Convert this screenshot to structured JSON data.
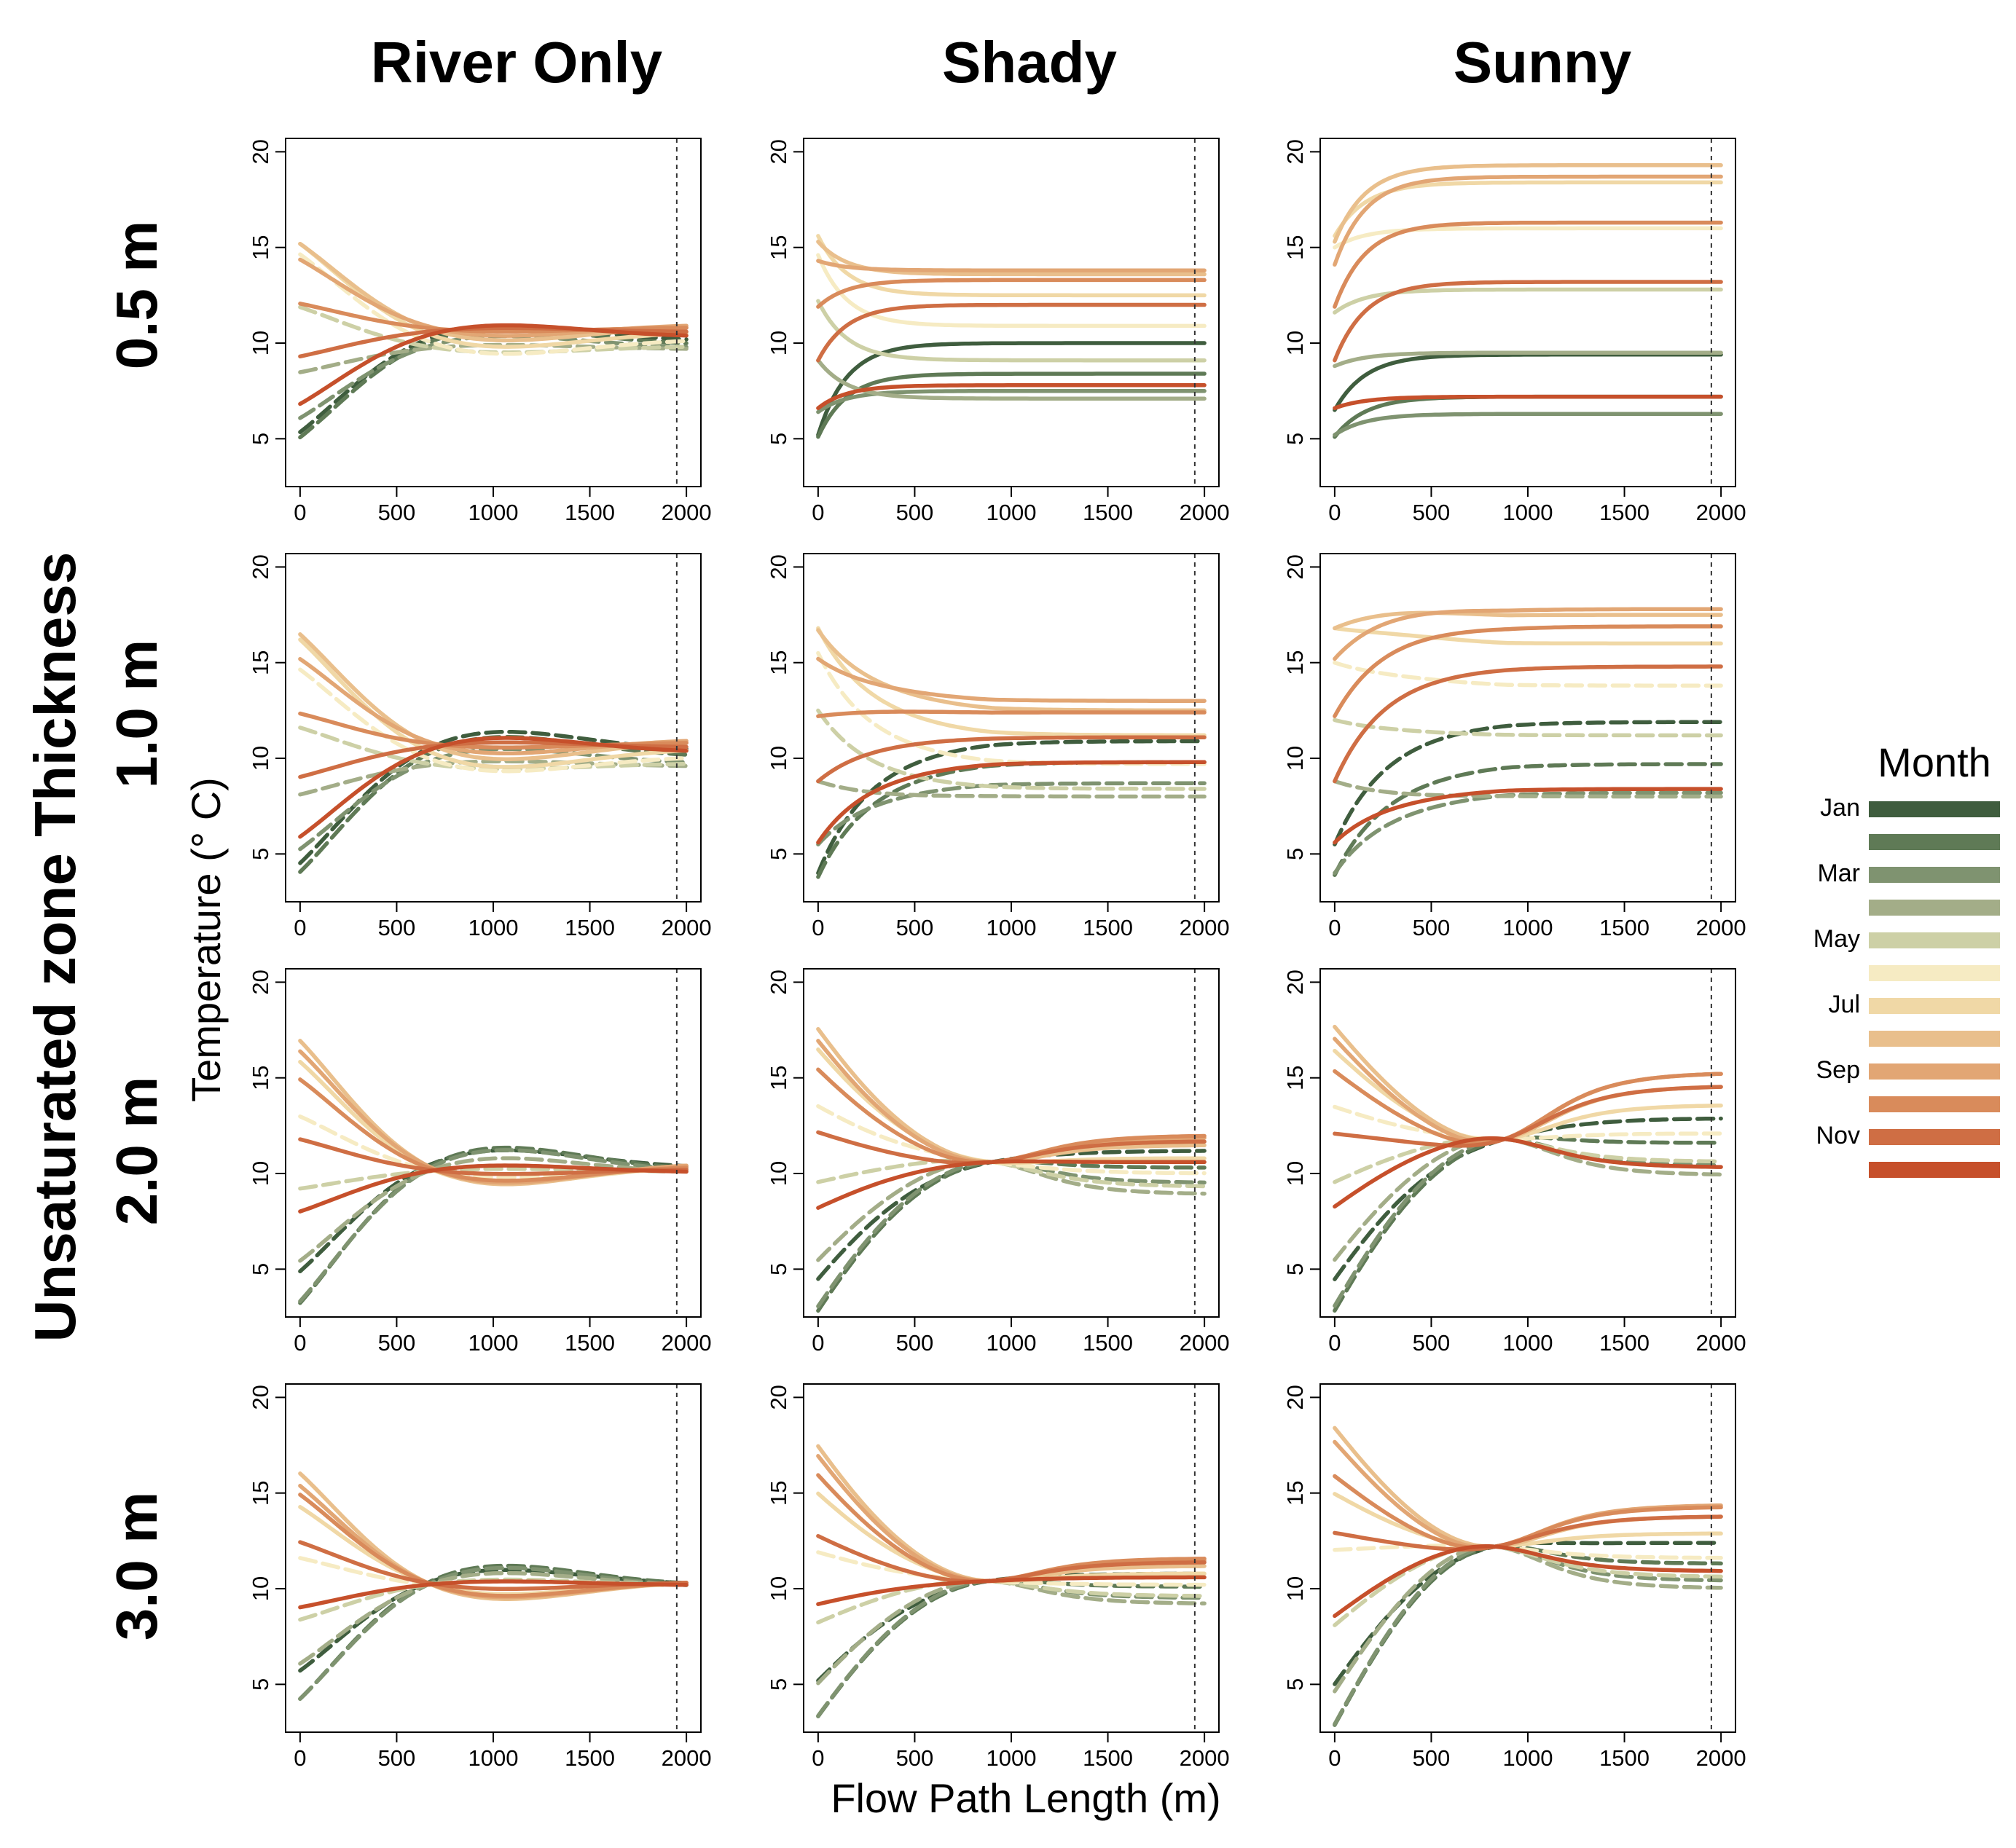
{
  "column_titles": [
    "River Only",
    "Shady",
    "Sunny"
  ],
  "row_titles": [
    "0.5 m",
    "1.0 m",
    "2.0 m",
    "3.0 m"
  ],
  "row_group_title": "Unsaturated zone Thickness",
  "ylabel": "Temperature (° C)",
  "xlabel": "Flow Path Length (m)",
  "legend": {
    "title": "Month",
    "labels": [
      "Jan",
      "",
      "Mar",
      "",
      "May",
      "",
      "Jul",
      "",
      "Sep",
      "",
      "Nov",
      ""
    ],
    "colors": [
      "#3f5d3e",
      "#5f7a56",
      "#7f9370",
      "#a3ad88",
      "#cdd0a6",
      "#f6ebc3",
      "#f0d8a6",
      "#e9bf8c",
      "#e2a674",
      "#d98b5b",
      "#cf6e44",
      "#c6502b"
    ]
  },
  "chart_data": {
    "type": "line",
    "layout": "4 rows x 3 columns of small multiples",
    "x_ticks": [
      0,
      500,
      1000,
      1500,
      2000
    ],
    "y_ticks": [
      5,
      10,
      15,
      20
    ],
    "xlim": [
      -75,
      2075
    ],
    "ylim": [
      2.5,
      20.7
    ],
    "reference_line_x": 1950,
    "note": "Each panel has 12 curves (one per month) of temperature vs flow path length; values approximate, read off the axes.",
    "panels": [
      {
        "row": "0.5 m",
        "col": "River Only",
        "model": "wave",
        "start_temps": [
          5.2,
          5.1,
          6.4,
          9.1,
          12.7,
          15.4,
          15.6,
          15.3,
          14.3,
          11.9,
          9.1,
          6.6
        ],
        "end_temps": [
          10.2,
          10.0,
          9.8,
          9.7,
          9.8,
          10.1,
          10.5,
          10.8,
          10.9,
          10.8,
          10.6,
          10.4
        ]
      },
      {
        "row": "0.5 m",
        "col": "Shady",
        "model": "relax",
        "start_temps": [
          5.2,
          5.1,
          6.4,
          9.1,
          12.2,
          14.6,
          15.6,
          15.3,
          14.3,
          11.9,
          9.1,
          6.6
        ],
        "end_temps": [
          10.0,
          8.4,
          7.5,
          7.1,
          9.1,
          10.9,
          12.5,
          13.6,
          13.8,
          13.3,
          12.0,
          7.8
        ],
        "decay_m": 150
      },
      {
        "row": "0.5 m",
        "col": "Sunny",
        "model": "relax",
        "start_temps": [
          6.5,
          5.1,
          5.2,
          8.8,
          11.6,
          15.0,
          15.6,
          15.3,
          14.1,
          11.9,
          9.1,
          6.6
        ],
        "end_temps": [
          9.4,
          7.2,
          6.3,
          9.5,
          12.8,
          16.0,
          18.4,
          19.3,
          18.7,
          16.3,
          13.2,
          7.2
        ],
        "decay_m": 160
      },
      {
        "row": "1.0 m",
        "col": "River Only",
        "model": "wave",
        "start_temps": [
          4.0,
          3.8,
          5.5,
          8.8,
          12.5,
          15.5,
          16.8,
          16.7,
          15.2,
          12.2,
          8.8,
          5.6
        ],
        "end_temps": [
          10.5,
          10.2,
          9.8,
          9.6,
          9.7,
          10.0,
          10.4,
          10.8,
          10.9,
          10.8,
          10.6,
          10.4
        ]
      },
      {
        "row": "1.0 m",
        "col": "Shady",
        "model": "dip",
        "start_temps": [
          4.0,
          3.8,
          5.5,
          8.8,
          12.5,
          15.5,
          16.8,
          16.7,
          15.2,
          12.2,
          8.8,
          5.6
        ],
        "end_temps": [
          10.9,
          9.8,
          8.7,
          8.0,
          8.4,
          9.7,
          11.2,
          12.5,
          13.0,
          12.4,
          11.1,
          9.8
        ]
      },
      {
        "row": "1.0 m",
        "col": "Sunny",
        "model": "dip",
        "start_temps": [
          5.5,
          3.9,
          4.0,
          8.8,
          12.0,
          15.0,
          16.8,
          16.8,
          15.2,
          12.2,
          8.8,
          5.6
        ],
        "end_temps": [
          11.9,
          9.7,
          8.2,
          8.0,
          11.2,
          13.8,
          16.0,
          17.5,
          17.8,
          16.9,
          14.8,
          8.4
        ]
      },
      {
        "row": "2.0 m",
        "col": "River Only",
        "model": "wave",
        "start_temps": [
          4.5,
          2.8,
          3.0,
          5.4,
          9.5,
          13.5,
          16.5,
          17.6,
          17.0,
          15.5,
          12.2,
          8.2
        ],
        "end_temps": [
          10.4,
          10.3,
          10.2,
          10.1,
          10.1,
          10.2,
          10.3,
          10.4,
          10.4,
          10.3,
          10.2,
          10.1
        ]
      },
      {
        "row": "2.0 m",
        "col": "Shady",
        "model": "converge",
        "start_temps": [
          4.5,
          2.8,
          3.0,
          5.4,
          9.5,
          13.5,
          16.5,
          17.6,
          17.0,
          15.5,
          12.2,
          8.2
        ],
        "end_temps": [
          11.2,
          10.3,
          9.5,
          8.9,
          9.3,
          10.0,
          10.8,
          11.5,
          11.9,
          12.0,
          11.7,
          10.6
        ],
        "node_x": 900,
        "node_y": 10.6
      },
      {
        "row": "2.0 m",
        "col": "Sunny",
        "model": "converge",
        "start_temps": [
          4.5,
          2.8,
          3.0,
          5.4,
          9.5,
          13.5,
          16.5,
          17.8,
          17.2,
          15.5,
          12.2,
          8.2
        ],
        "end_temps": [
          12.9,
          11.6,
          10.4,
          9.9,
          10.6,
          12.1,
          13.6,
          14.6,
          15.3,
          15.3,
          14.6,
          10.3
        ],
        "node_x": 880,
        "node_y": 11.8
      },
      {
        "row": "3.0 m",
        "col": "River Only",
        "model": "wave",
        "start_temps": [
          5.5,
          3.9,
          4.0,
          6.0,
          8.5,
          12.0,
          14.8,
          16.7,
          16.0,
          15.5,
          12.8,
          9.2
        ],
        "end_temps": [
          10.3,
          10.3,
          10.2,
          10.2,
          10.2,
          10.2,
          10.3,
          10.3,
          10.3,
          10.3,
          10.3,
          10.2
        ]
      },
      {
        "row": "3.0 m",
        "col": "Shady",
        "model": "converge",
        "start_temps": [
          5.2,
          3.3,
          3.3,
          5.0,
          8.2,
          11.9,
          15.0,
          17.5,
          17.0,
          16.0,
          12.8,
          9.2
        ],
        "end_temps": [
          10.8,
          10.1,
          9.5,
          9.2,
          9.6,
          10.2,
          10.8,
          11.2,
          11.5,
          11.6,
          11.4,
          10.6
        ],
        "node_x": 880,
        "node_y": 10.4
      },
      {
        "row": "3.0 m",
        "col": "Sunny",
        "model": "converge",
        "start_temps": [
          5.0,
          2.8,
          2.8,
          4.5,
          8.0,
          12.0,
          15.0,
          18.5,
          17.8,
          16.0,
          13.0,
          8.5
        ],
        "end_temps": [
          12.4,
          11.3,
          10.4,
          10.0,
          10.6,
          11.6,
          12.9,
          13.8,
          14.4,
          14.3,
          13.8,
          10.9
        ],
        "node_x": 830,
        "node_y": 12.2
      }
    ]
  }
}
